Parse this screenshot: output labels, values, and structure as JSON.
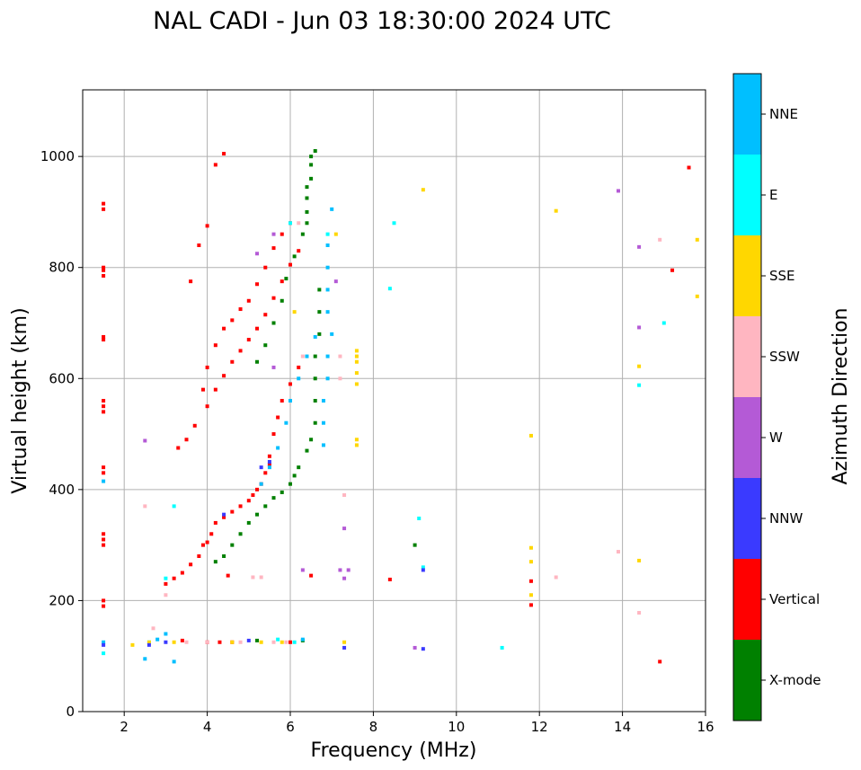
{
  "chart_data": {
    "type": "scatter",
    "title": "NAL CADI - Jun 03 18:30:00 2024 UTC",
    "xlabel": "Frequency (MHz)",
    "ylabel": "Virtual height (km)",
    "xlim": [
      1,
      16
    ],
    "ylim": [
      0,
      1120
    ],
    "xticks": [
      2,
      4,
      6,
      8,
      10,
      12,
      14,
      16
    ],
    "yticks": [
      0,
      200,
      400,
      600,
      800,
      1000
    ],
    "grid": true,
    "colorbar": {
      "label": "Azimuth Direction",
      "categories": [
        {
          "name": "X-mode",
          "color": "#008000"
        },
        {
          "name": "Vertical",
          "color": "#ff0000"
        },
        {
          "name": "NNW",
          "color": "#3a3aff"
        },
        {
          "name": "W",
          "color": "#b45ad6"
        },
        {
          "name": "SSW",
          "color": "#ffb6c1"
        },
        {
          "name": "SSE",
          "color": "#ffd700"
        },
        {
          "name": "E",
          "color": "#00ffff"
        },
        {
          "name": "NNE",
          "color": "#00bfff"
        }
      ]
    },
    "series": [
      {
        "name": "Vertical",
        "points": [
          [
            1.5,
            190
          ],
          [
            1.5,
            200
          ],
          [
            1.5,
            300
          ],
          [
            1.5,
            310
          ],
          [
            1.5,
            320
          ],
          [
            1.5,
            430
          ],
          [
            1.5,
            440
          ],
          [
            1.5,
            540
          ],
          [
            1.5,
            550
          ],
          [
            1.5,
            560
          ],
          [
            1.5,
            670
          ],
          [
            1.5,
            675
          ],
          [
            1.5,
            785
          ],
          [
            1.5,
            795
          ],
          [
            1.5,
            800
          ],
          [
            1.5,
            905
          ],
          [
            1.5,
            915
          ],
          [
            3.0,
            230
          ],
          [
            3.2,
            240
          ],
          [
            3.4,
            250
          ],
          [
            3.6,
            265
          ],
          [
            3.8,
            280
          ],
          [
            3.9,
            300
          ],
          [
            4.0,
            305
          ],
          [
            4.1,
            320
          ],
          [
            4.2,
            340
          ],
          [
            4.4,
            350
          ],
          [
            4.6,
            360
          ],
          [
            4.8,
            370
          ],
          [
            5.0,
            380
          ],
          [
            5.1,
            390
          ],
          [
            5.2,
            400
          ],
          [
            5.3,
            410
          ],
          [
            5.4,
            430
          ],
          [
            5.5,
            445
          ],
          [
            3.3,
            475
          ],
          [
            3.5,
            490
          ],
          [
            3.7,
            515
          ],
          [
            4.0,
            550
          ],
          [
            4.2,
            580
          ],
          [
            4.4,
            605
          ],
          [
            4.6,
            630
          ],
          [
            4.8,
            650
          ],
          [
            5.0,
            670
          ],
          [
            5.2,
            690
          ],
          [
            5.4,
            715
          ],
          [
            5.6,
            745
          ],
          [
            5.8,
            775
          ],
          [
            6.0,
            805
          ],
          [
            6.2,
            830
          ],
          [
            3.9,
            580
          ],
          [
            4.0,
            620
          ],
          [
            4.2,
            660
          ],
          [
            4.4,
            690
          ],
          [
            4.6,
            705
          ],
          [
            4.8,
            725
          ],
          [
            5.0,
            740
          ],
          [
            5.2,
            770
          ],
          [
            5.4,
            800
          ],
          [
            5.6,
            835
          ],
          [
            5.8,
            860
          ],
          [
            6.0,
            880
          ],
          [
            3.6,
            775
          ],
          [
            3.8,
            840
          ],
          [
            4.0,
            875
          ],
          [
            4.2,
            985
          ],
          [
            4.4,
            1005
          ],
          [
            5.5,
            460
          ],
          [
            5.6,
            500
          ],
          [
            5.7,
            530
          ],
          [
            5.8,
            560
          ],
          [
            6.0,
            590
          ],
          [
            6.2,
            620
          ],
          [
            4.0,
            125
          ],
          [
            4.3,
            125
          ],
          [
            4.6,
            125
          ],
          [
            3.4,
            128
          ],
          [
            6.0,
            125
          ],
          [
            4.5,
            245
          ],
          [
            6.5,
            245
          ],
          [
            8.4,
            238
          ],
          [
            11.8,
            235
          ],
          [
            11.8,
            192
          ],
          [
            14.9,
            90
          ],
          [
            15.2,
            795
          ],
          [
            15.6,
            980
          ]
        ]
      },
      {
        "name": "X-mode",
        "points": [
          [
            4.2,
            270
          ],
          [
            4.4,
            280
          ],
          [
            4.6,
            300
          ],
          [
            4.8,
            320
          ],
          [
            5.0,
            340
          ],
          [
            5.2,
            355
          ],
          [
            5.4,
            370
          ],
          [
            5.6,
            385
          ],
          [
            5.8,
            395
          ],
          [
            6.0,
            410
          ],
          [
            6.1,
            425
          ],
          [
            6.2,
            440
          ],
          [
            6.4,
            470
          ],
          [
            6.5,
            490
          ],
          [
            6.6,
            520
          ],
          [
            6.6,
            560
          ],
          [
            6.6,
            600
          ],
          [
            6.6,
            640
          ],
          [
            6.7,
            680
          ],
          [
            6.7,
            720
          ],
          [
            6.7,
            760
          ],
          [
            5.2,
            630
          ],
          [
            5.4,
            660
          ],
          [
            5.6,
            700
          ],
          [
            5.8,
            740
          ],
          [
            5.9,
            780
          ],
          [
            6.1,
            820
          ],
          [
            6.3,
            860
          ],
          [
            6.4,
            880
          ],
          [
            6.4,
            900
          ],
          [
            6.4,
            925
          ],
          [
            6.4,
            945
          ],
          [
            6.5,
            960
          ],
          [
            6.5,
            985
          ],
          [
            6.5,
            1000
          ],
          [
            6.6,
            1010
          ],
          [
            9.0,
            300
          ],
          [
            5.2,
            128
          ],
          [
            6.3,
            128
          ]
        ]
      },
      {
        "name": "NNE",
        "points": [
          [
            5.3,
            410
          ],
          [
            5.5,
            440
          ],
          [
            5.7,
            475
          ],
          [
            5.9,
            520
          ],
          [
            6.0,
            560
          ],
          [
            6.2,
            600
          ],
          [
            6.4,
            640
          ],
          [
            6.6,
            675
          ],
          [
            6.8,
            480
          ],
          [
            6.8,
            520
          ],
          [
            6.8,
            560
          ],
          [
            6.9,
            600
          ],
          [
            6.9,
            640
          ],
          [
            7.0,
            680
          ],
          [
            6.9,
            720
          ],
          [
            6.9,
            760
          ],
          [
            6.9,
            800
          ],
          [
            6.9,
            840
          ],
          [
            7.0,
            905
          ],
          [
            2.8,
            130
          ],
          [
            3.0,
            140
          ],
          [
            2.5,
            95
          ],
          [
            3.2,
            90
          ],
          [
            6.3,
            130
          ],
          [
            1.5,
            415
          ],
          [
            1.5,
            125
          ]
        ]
      },
      {
        "name": "E",
        "points": [
          [
            3.0,
            240
          ],
          [
            3.2,
            370
          ],
          [
            2.6,
            125
          ],
          [
            6.0,
            880
          ],
          [
            6.9,
            860
          ],
          [
            8.5,
            880
          ],
          [
            8.4,
            762
          ],
          [
            9.1,
            348
          ],
          [
            9.2,
            260
          ],
          [
            11.1,
            115
          ],
          [
            14.4,
            588
          ],
          [
            15.0,
            700
          ],
          [
            5.7,
            130
          ],
          [
            6.1,
            125
          ],
          [
            1.5,
            105
          ]
        ]
      },
      {
        "name": "SSE",
        "points": [
          [
            7.6,
            480
          ],
          [
            7.6,
            490
          ],
          [
            7.6,
            590
          ],
          [
            7.6,
            610
          ],
          [
            7.6,
            630
          ],
          [
            7.6,
            650
          ],
          [
            7.6,
            640
          ],
          [
            9.2,
            940
          ],
          [
            11.8,
            295
          ],
          [
            11.8,
            270
          ],
          [
            11.8,
            210
          ],
          [
            11.8,
            497
          ],
          [
            12.4,
            902
          ],
          [
            14.4,
            622
          ],
          [
            14.4,
            272
          ],
          [
            15.8,
            850
          ],
          [
            15.8,
            748
          ],
          [
            2.2,
            120
          ],
          [
            2.6,
            125
          ],
          [
            3.2,
            125
          ],
          [
            4.6,
            125
          ],
          [
            5.3,
            125
          ],
          [
            5.8,
            125
          ],
          [
            6.1,
            720
          ],
          [
            7.3,
            125
          ],
          [
            7.1,
            860
          ]
        ]
      },
      {
        "name": "SSW",
        "points": [
          [
            2.5,
            370
          ],
          [
            3.0,
            210
          ],
          [
            4.8,
            125
          ],
          [
            5.1,
            242
          ],
          [
            5.3,
            242
          ],
          [
            6.2,
            880
          ],
          [
            6.3,
            640
          ],
          [
            7.3,
            390
          ],
          [
            7.2,
            640
          ],
          [
            7.2,
            600
          ],
          [
            12.4,
            242
          ],
          [
            13.9,
            288
          ],
          [
            14.4,
            178
          ],
          [
            14.9,
            850
          ],
          [
            4.0,
            125
          ],
          [
            3.5,
            125
          ],
          [
            5.6,
            125
          ],
          [
            5.9,
            125
          ],
          [
            2.7,
            150
          ]
        ]
      },
      {
        "name": "W",
        "points": [
          [
            7.2,
            255
          ],
          [
            7.3,
            240
          ],
          [
            7.4,
            255
          ],
          [
            7.3,
            330
          ],
          [
            7.1,
            775
          ],
          [
            5.6,
            860
          ],
          [
            5.2,
            825
          ],
          [
            5.6,
            620
          ],
          [
            9.0,
            115
          ],
          [
            13.9,
            938
          ],
          [
            14.4,
            692
          ],
          [
            14.4,
            837
          ],
          [
            6.3,
            255
          ],
          [
            2.5,
            488
          ]
        ]
      },
      {
        "name": "NNW",
        "points": [
          [
            5.3,
            440
          ],
          [
            5.5,
            450
          ],
          [
            9.2,
            113
          ],
          [
            9.2,
            255
          ],
          [
            7.3,
            115
          ],
          [
            4.4,
            355
          ],
          [
            5.0,
            128
          ],
          [
            2.6,
            120
          ],
          [
            1.5,
            120
          ],
          [
            3.0,
            125
          ]
        ]
      }
    ]
  }
}
